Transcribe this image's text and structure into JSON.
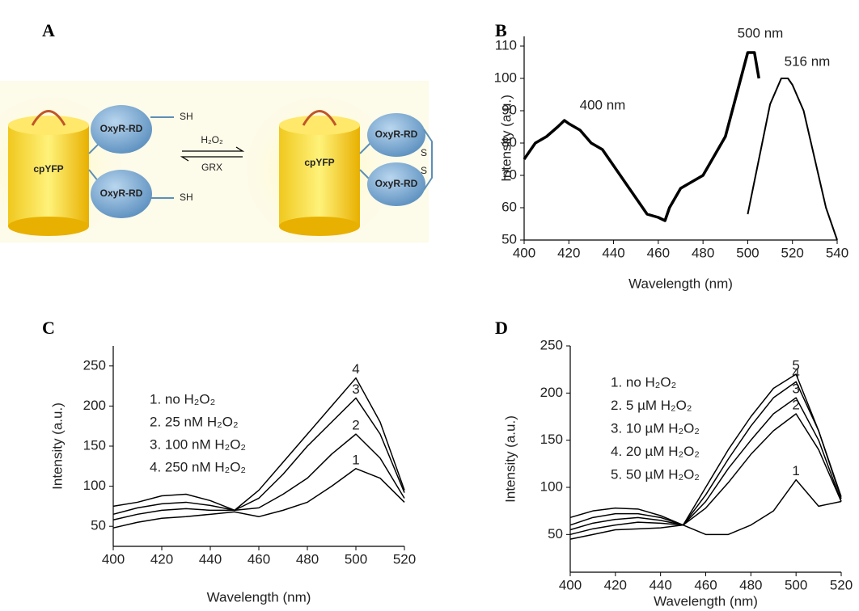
{
  "panel_labels": [
    "A",
    "B",
    "C",
    "D"
  ],
  "diagram": {
    "reduced": {
      "core": "cpYFP",
      "domains": [
        "OxyR-RD",
        "OxyR-RD"
      ],
      "thiols": [
        "SH",
        "SH"
      ]
    },
    "arrow": {
      "forward": "H₂O₂",
      "backward": "GRX"
    },
    "oxidized": {
      "core": "cpYFP",
      "domains": [
        "OxyR-RD",
        "OxyR-RD"
      ],
      "disulfide": [
        "S",
        "S"
      ]
    }
  },
  "chart_data": [
    {
      "type": "line",
      "xlabel": "Wavelength (nm)",
      "ylabel": "Intensity (a.u.)",
      "xlim": [
        400,
        540
      ],
      "ylim": [
        50,
        113
      ],
      "xticks": [
        400,
        420,
        440,
        460,
        480,
        500,
        520,
        540
      ],
      "yticks": [
        50,
        60,
        70,
        80,
        90,
        100,
        110
      ],
      "annotations": [
        "400 nm",
        "500 nm",
        "516 nm"
      ],
      "series": [
        {
          "color": "#000000",
          "width": 3.5,
          "x": [
            400,
            405,
            410,
            415,
            418,
            420,
            425,
            430,
            435,
            440,
            445,
            450,
            455,
            460,
            463,
            465,
            470,
            475,
            480,
            485,
            490,
            495,
            500,
            503,
            505
          ],
          "values": [
            75,
            80,
            82,
            85,
            87,
            86,
            84,
            80,
            78,
            73,
            68,
            63,
            58,
            57,
            56,
            60,
            66,
            68,
            70,
            76,
            82,
            95,
            108,
            108,
            100
          ]
        },
        {
          "color": "#000000",
          "width": 2,
          "x": [
            500,
            505,
            510,
            515,
            518,
            520,
            525,
            530,
            535,
            540
          ],
          "values": [
            58,
            75,
            92,
            100,
            100,
            98,
            90,
            75,
            60,
            50
          ]
        }
      ]
    },
    {
      "type": "line",
      "xlabel": "Wavelength (nm)",
      "ylabel": "Intensity (a.u.)",
      "xlim": [
        400,
        520
      ],
      "ylim": [
        25,
        275
      ],
      "xticks": [
        400,
        420,
        440,
        460,
        480,
        500,
        520
      ],
      "yticks": [
        50,
        100,
        150,
        200,
        250
      ],
      "series": [
        {
          "name": "1. no H₂O₂",
          "peak_label": "1",
          "color": "#000000",
          "x": [
            400,
            410,
            420,
            430,
            440,
            450,
            460,
            470,
            480,
            490,
            500,
            510,
            520
          ],
          "values": [
            48,
            55,
            60,
            62,
            65,
            68,
            62,
            70,
            80,
            100,
            122,
            110,
            80
          ]
        },
        {
          "name": "2. 25 nM H₂O₂",
          "peak_label": "2",
          "color": "#000000",
          "x": [
            400,
            410,
            420,
            430,
            440,
            450,
            460,
            470,
            480,
            490,
            500,
            510,
            520
          ],
          "values": [
            58,
            65,
            70,
            72,
            70,
            70,
            73,
            90,
            110,
            140,
            165,
            135,
            85
          ]
        },
        {
          "name": "3. 100 nM H₂O₂",
          "peak_label": "3",
          "color": "#000000",
          "x": [
            400,
            410,
            420,
            430,
            440,
            450,
            460,
            470,
            480,
            490,
            500,
            510,
            520
          ],
          "values": [
            65,
            73,
            78,
            80,
            76,
            70,
            85,
            115,
            150,
            180,
            210,
            165,
            92
          ]
        },
        {
          "name": "4. 250 nM H₂O₂",
          "peak_label": "4",
          "color": "#000000",
          "x": [
            400,
            410,
            420,
            430,
            440,
            450,
            460,
            470,
            480,
            490,
            500,
            510,
            520
          ],
          "values": [
            75,
            80,
            88,
            90,
            82,
            70,
            95,
            130,
            165,
            200,
            235,
            180,
            95
          ]
        }
      ]
    },
    {
      "type": "line",
      "xlabel": "Wavelength (nm)",
      "ylabel": "Intensity (a.u.)",
      "xlim": [
        400,
        520
      ],
      "ylim": [
        10,
        250
      ],
      "xticks": [
        400,
        420,
        440,
        460,
        480,
        500,
        520
      ],
      "yticks": [
        50,
        100,
        150,
        200,
        250
      ],
      "series": [
        {
          "name": "1. no H₂O₂",
          "peak_label": "1",
          "color": "#000000",
          "x": [
            400,
            410,
            420,
            430,
            440,
            450,
            460,
            470,
            480,
            490,
            500,
            510,
            520
          ],
          "values": [
            45,
            50,
            55,
            56,
            57,
            60,
            50,
            50,
            60,
            75,
            108,
            80,
            85
          ]
        },
        {
          "name": "2. 5 µM H₂O₂",
          "peak_label": "2",
          "color": "#000000",
          "x": [
            400,
            410,
            420,
            430,
            440,
            450,
            460,
            470,
            480,
            490,
            500,
            510,
            520
          ],
          "values": [
            50,
            56,
            60,
            63,
            62,
            60,
            78,
            105,
            135,
            160,
            178,
            140,
            85
          ]
        },
        {
          "name": "3. 10 µM H₂O₂",
          "peak_label": "3",
          "color": "#000000",
          "x": [
            400,
            410,
            420,
            430,
            440,
            450,
            460,
            470,
            480,
            490,
            500,
            510,
            520
          ],
          "values": [
            55,
            62,
            66,
            68,
            65,
            60,
            85,
            120,
            150,
            178,
            195,
            150,
            85
          ]
        },
        {
          "name": "4. 20 µM H₂O₂",
          "peak_label": "4",
          "color": "#000000",
          "x": [
            400,
            410,
            420,
            430,
            440,
            450,
            460,
            470,
            480,
            490,
            500,
            510,
            520
          ],
          "values": [
            60,
            68,
            72,
            72,
            68,
            60,
            92,
            130,
            165,
            195,
            212,
            160,
            88
          ]
        },
        {
          "name": "5. 50 µM H₂O₂",
          "peak_label": "5",
          "color": "#000000",
          "x": [
            400,
            410,
            420,
            430,
            440,
            450,
            460,
            470,
            480,
            490,
            500,
            510,
            520
          ],
          "values": [
            68,
            75,
            78,
            77,
            70,
            60,
            100,
            140,
            175,
            205,
            220,
            160,
            90
          ]
        }
      ]
    }
  ]
}
